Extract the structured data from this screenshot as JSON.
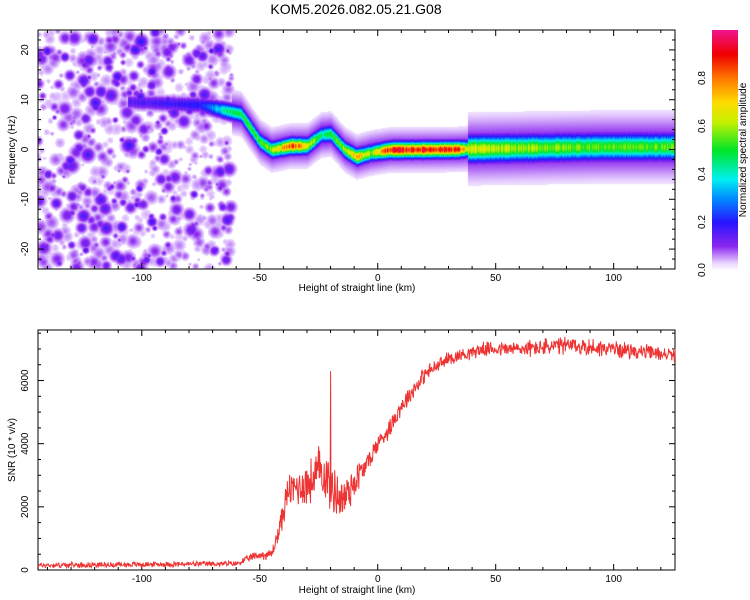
{
  "title": "KOM5.2026.082.05.21.G08",
  "chart_data": [
    {
      "type": "heatmap",
      "xlabel": "Height of straight line (km)",
      "ylabel": "Frequency (Hz)",
      "xlim": [
        -144,
        126
      ],
      "ylim": [
        -24,
        24
      ],
      "xticks": [
        -100,
        -50,
        0,
        50,
        100
      ],
      "yticks": [
        -20,
        -10,
        0,
        10,
        20
      ],
      "colorbar": {
        "label": "Normalized spectral amplitude",
        "range": [
          0,
          1
        ],
        "ticks": [
          "0.0",
          "0.2",
          "0.4",
          "0.6",
          "0.8"
        ]
      },
      "noise_region_km": [
        -144,
        -62
      ],
      "ridge": [
        {
          "km": -104,
          "freq": 9.6,
          "amp": 0.15
        },
        {
          "km": -75,
          "freq": 9.0,
          "amp": 0.2
        },
        {
          "km": -64,
          "freq": 7.8,
          "amp": 0.45
        },
        {
          "km": -58,
          "freq": 7.2,
          "amp": 0.5
        },
        {
          "km": -50,
          "freq": 1.6,
          "amp": 0.55
        },
        {
          "km": -45,
          "freq": 0.0,
          "amp": 0.6
        },
        {
          "km": -37,
          "freq": 0.8,
          "amp": 0.85
        },
        {
          "km": -30,
          "freq": 0.8,
          "amp": 0.7
        },
        {
          "km": -24,
          "freq": 3.0,
          "amp": 0.45
        },
        {
          "km": -20,
          "freq": 3.2,
          "amp": 0.5
        },
        {
          "km": -14,
          "freq": 0.0,
          "amp": 0.6
        },
        {
          "km": -9,
          "freq": -1.4,
          "amp": 0.75
        },
        {
          "km": -3,
          "freq": -0.6,
          "amp": 0.6
        },
        {
          "km": 5,
          "freq": 0.0,
          "amp": 0.9
        },
        {
          "km": 33,
          "freq": 0.1,
          "amp": 0.9
        },
        {
          "km": 38,
          "freq": 0.2,
          "amp": 0.65
        },
        {
          "km": 52,
          "freq": 0.3,
          "amp": 0.6
        },
        {
          "km": 95,
          "freq": 0.6,
          "amp": 0.55
        },
        {
          "km": 126,
          "freq": 0.6,
          "amp": 0.55
        }
      ]
    },
    {
      "type": "line",
      "xlabel": "Height of straight line (km)",
      "ylabel": "SNR (10 * v/v)",
      "xlim": [
        -144,
        126
      ],
      "ylim": [
        0,
        7600
      ],
      "xticks": [
        -100,
        -50,
        0,
        50,
        100
      ],
      "yticks": [
        0,
        2000,
        4000,
        6000
      ],
      "series": [
        {
          "name": "SNR",
          "color": "#ee3333",
          "x": [
            -144,
            -60,
            -52,
            -45,
            -42,
            -38,
            -35,
            -28,
            -24,
            -20,
            -15,
            -10,
            -5,
            0,
            5,
            10,
            20,
            30,
            45,
            60,
            80,
            100,
            126
          ],
          "y": [
            150,
            200,
            450,
            500,
            1200,
            2500,
            2600,
            2800,
            3200,
            2700,
            2200,
            2800,
            3300,
            4000,
            4500,
            5200,
            6200,
            6700,
            7000,
            7000,
            7100,
            7000,
            6800
          ],
          "noise": [
            100,
            100,
            150,
            200,
            400,
            600,
            700,
            900,
            1000,
            1000,
            900,
            700,
            400,
            350,
            350,
            350,
            300,
            250,
            250,
            300,
            350,
            300,
            250
          ],
          "spike": {
            "x": -20,
            "y": 6300
          }
        }
      ]
    }
  ]
}
